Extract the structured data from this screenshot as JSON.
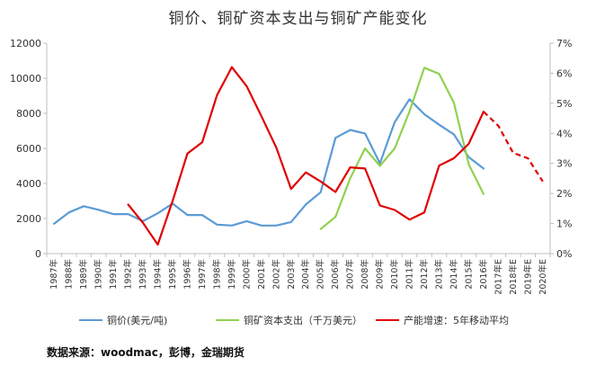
{
  "chart_data": {
    "type": "line",
    "title": "铜价、铜矿资本支出与铜矿产能变化",
    "x": [
      "1987年",
      "1988年",
      "1989年",
      "1990年",
      "1991年",
      "1992年",
      "1993年",
      "1994年",
      "1995年",
      "1996年",
      "1997年",
      "1998年",
      "1999年",
      "2000年",
      "2001年",
      "2002年",
      "2003年",
      "2004年",
      "2005年",
      "2006年",
      "2007年",
      "2008年",
      "2009年",
      "2010年",
      "2011年",
      "2012年",
      "2013年",
      "2014年",
      "2015年",
      "2016年",
      "2017年E",
      "2018年E",
      "2019年E",
      "2020年E"
    ],
    "y_left": {
      "ticks": [
        "0",
        "2000",
        "4000",
        "6000",
        "8000",
        "10000",
        "12000"
      ],
      "ylim": [
        0,
        12000
      ]
    },
    "y_right": {
      "ticks": [
        "0%",
        "1%",
        "2%",
        "3%",
        "4%",
        "5%",
        "6%",
        "7%"
      ],
      "ylim": [
        0,
        0.07
      ]
    },
    "grid": false,
    "legend_position": "bottom",
    "series": [
      {
        "name": "铜价(美元/吨)",
        "axis": "left",
        "color": "#5b9bd5",
        "values": [
          1700,
          2350,
          2700,
          2500,
          2250,
          2250,
          1850,
          2300,
          2850,
          2200,
          2200,
          1650,
          1600,
          1850,
          1600,
          1600,
          1800,
          2800,
          3500,
          6600,
          7050,
          6850,
          5150,
          7500,
          8800,
          7950,
          7350,
          6800,
          5500,
          4850,
          null,
          null,
          null,
          null
        ]
      },
      {
        "name": "铜矿资本支出（千万美元）",
        "axis": "left",
        "color": "#92d050",
        "values": [
          null,
          null,
          null,
          null,
          null,
          null,
          null,
          null,
          null,
          null,
          null,
          null,
          null,
          null,
          null,
          null,
          null,
          null,
          1400,
          2100,
          4300,
          6000,
          5000,
          6000,
          8100,
          10600,
          10250,
          8600,
          5100,
          3400,
          null,
          null,
          null,
          null
        ]
      },
      {
        "name": "产能增速：5年移动平均",
        "axis": "right",
        "color": "#e00000",
        "values": [
          null,
          null,
          null,
          null,
          null,
          0.0163,
          0.0102,
          0.003,
          0.0175,
          0.0333,
          0.037,
          0.0527,
          0.062,
          0.0557,
          0.0457,
          0.0353,
          0.0215,
          0.027,
          0.024,
          0.0205,
          0.0287,
          0.0283,
          0.016,
          0.0145,
          0.0113,
          0.0137,
          0.0293,
          0.0317,
          0.0365,
          0.0472,
          0.0425,
          0.0335,
          0.0317,
          0.024
        ],
        "dashed_from": "2016年"
      }
    ],
    "source": "数据来源：woodmac，彭博，金瑞期货"
  }
}
